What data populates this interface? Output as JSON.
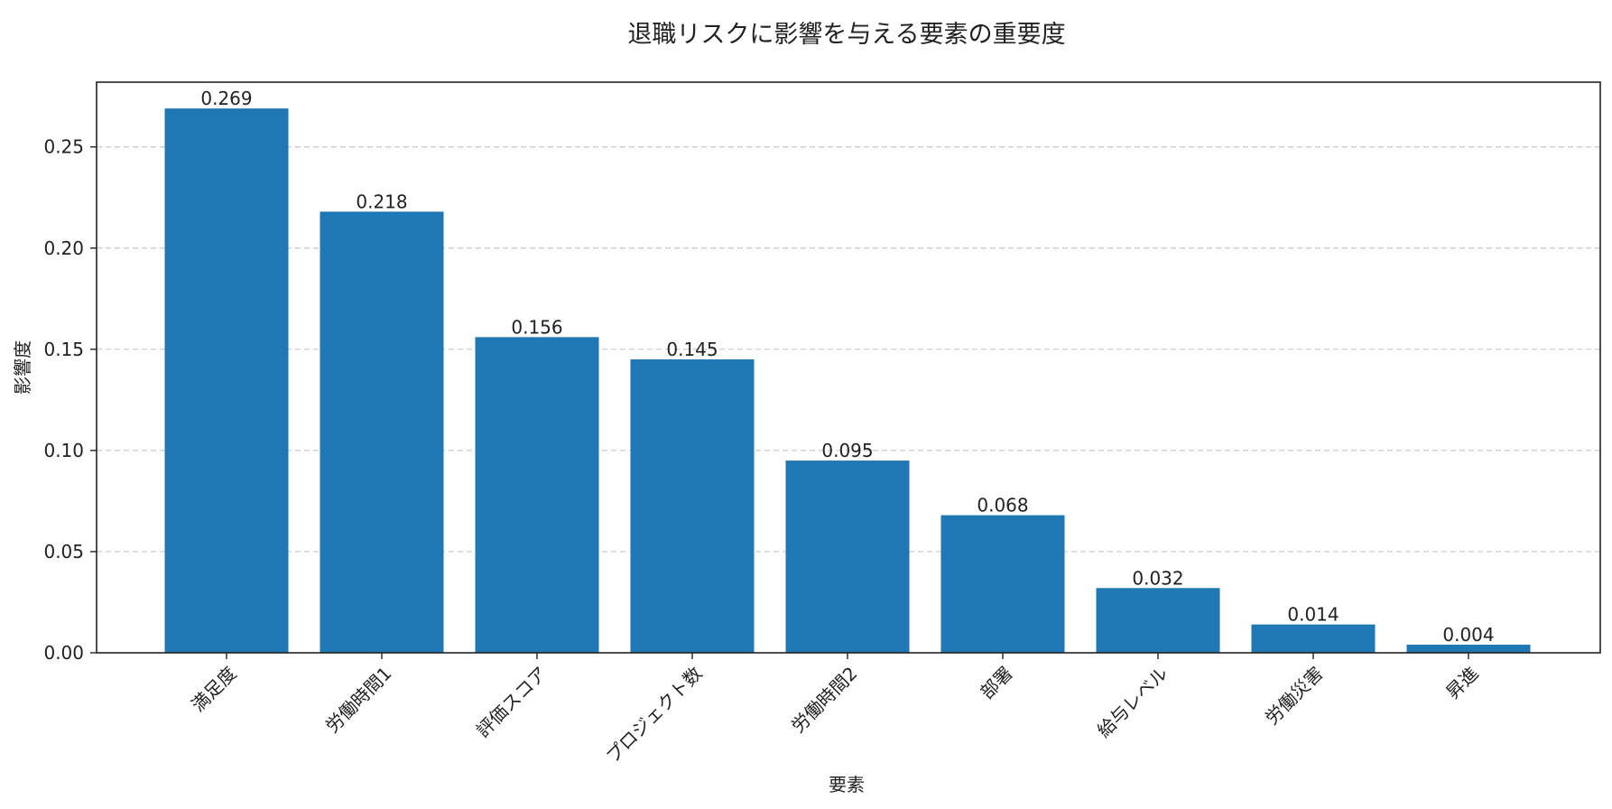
{
  "chart_data": {
    "type": "bar",
    "title": "退職リスクに影響を与える要素の重要度",
    "xlabel": "要素",
    "ylabel": "影響度",
    "categories": [
      "満足度",
      "労働時間1",
      "評価スコア",
      "プロジェクト数",
      "労働時間2",
      "部署",
      "給与レベル",
      "労働災害",
      "昇進"
    ],
    "values": [
      0.269,
      0.218,
      0.156,
      0.145,
      0.095,
      0.068,
      0.032,
      0.014,
      0.004
    ],
    "value_labels": [
      "0.269",
      "0.218",
      "0.156",
      "0.145",
      "0.095",
      "0.068",
      "0.032",
      "0.014",
      "0.004"
    ],
    "ylim": [
      0,
      0.282
    ],
    "yticks": [
      0.0,
      0.05,
      0.1,
      0.15,
      0.2,
      0.25
    ],
    "ytick_labels": [
      "0.00",
      "0.05",
      "0.10",
      "0.15",
      "0.20",
      "0.25"
    ],
    "grid": "y-dashed",
    "legend": "none",
    "bar_color": "#1f77b4",
    "grid_color": "#c8c8c8"
  }
}
